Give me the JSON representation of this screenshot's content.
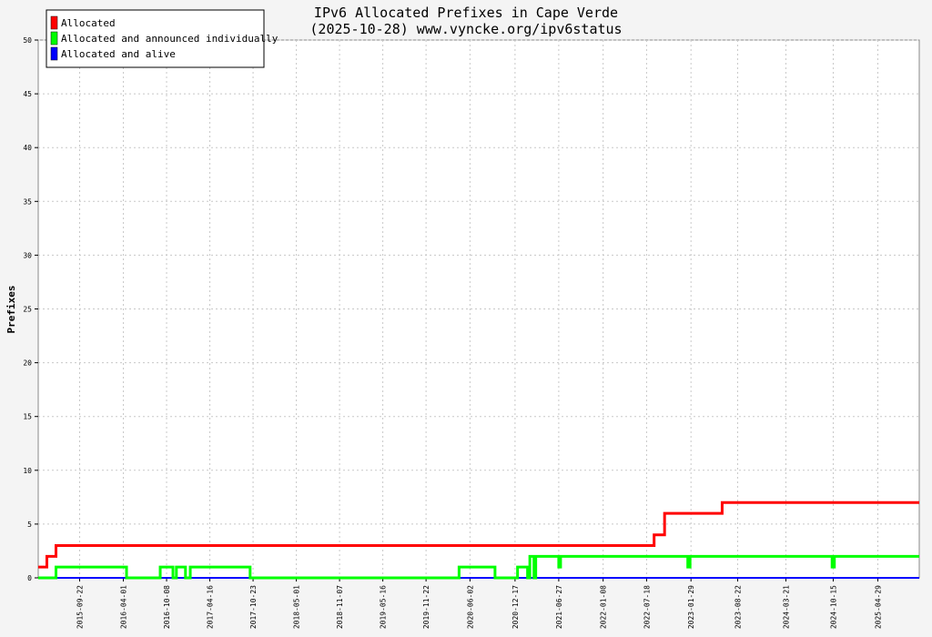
{
  "chart_data": {
    "type": "line",
    "title": "IPv6 Allocated Prefixes in Cape Verde",
    "subtitle": "(2025-10-28) www.vyncke.org/ipv6status",
    "xlabel": "",
    "ylabel": "Prefixes",
    "ylim": [
      0,
      50
    ],
    "yticks": [
      0,
      5,
      10,
      15,
      20,
      25,
      30,
      35,
      40,
      45,
      50
    ],
    "xlim": [
      "2015-03-24",
      "2025-10-28"
    ],
    "xticks": [
      "2015-09-22",
      "2016-04-01",
      "2016-10-08",
      "2017-04-16",
      "2017-10-23",
      "2018-05-01",
      "2018-11-07",
      "2019-05-16",
      "2019-11-22",
      "2020-06-02",
      "2020-12-17",
      "2021-06-27",
      "2022-01-08",
      "2022-07-18",
      "2023-01-29",
      "2023-08-22",
      "2024-03-21",
      "2024-10-15",
      "2025-04-29"
    ],
    "grid": true,
    "legend_position": "top-left",
    "series": [
      {
        "name": "Allocated",
        "color": "#ff0000",
        "points": [
          [
            "2015-03-24",
            1
          ],
          [
            "2015-05-01",
            1
          ],
          [
            "2015-05-01",
            2
          ],
          [
            "2015-06-10",
            2
          ],
          [
            "2015-06-10",
            3
          ],
          [
            "2022-08-20",
            3
          ],
          [
            "2022-08-20",
            4
          ],
          [
            "2022-10-05",
            4
          ],
          [
            "2022-10-05",
            6
          ],
          [
            "2023-06-15",
            6
          ],
          [
            "2023-06-15",
            7
          ],
          [
            "2025-10-28",
            7
          ]
        ]
      },
      {
        "name": "Allocated and announced individually",
        "color": "#00ff00",
        "points": [
          [
            "2015-03-24",
            0
          ],
          [
            "2015-06-10",
            0
          ],
          [
            "2015-06-10",
            1
          ],
          [
            "2016-04-15",
            1
          ],
          [
            "2016-04-15",
            0
          ],
          [
            "2016-09-10",
            0
          ],
          [
            "2016-09-10",
            1
          ],
          [
            "2016-11-05",
            1
          ],
          [
            "2016-11-05",
            0
          ],
          [
            "2016-11-20",
            0
          ],
          [
            "2016-11-20",
            1
          ],
          [
            "2016-12-30",
            1
          ],
          [
            "2016-12-30",
            0
          ],
          [
            "2017-01-20",
            0
          ],
          [
            "2017-01-20",
            1
          ],
          [
            "2017-10-10",
            1
          ],
          [
            "2017-10-10",
            0
          ],
          [
            "2020-04-15",
            0
          ],
          [
            "2020-04-15",
            1
          ],
          [
            "2020-09-20",
            1
          ],
          [
            "2020-09-20",
            0
          ],
          [
            "2020-12-28",
            0
          ],
          [
            "2020-12-28",
            1
          ],
          [
            "2021-02-10",
            1
          ],
          [
            "2021-02-10",
            0
          ],
          [
            "2021-02-20",
            0
          ],
          [
            "2021-02-20",
            2
          ],
          [
            "2021-03-10",
            2
          ],
          [
            "2021-03-10",
            0
          ],
          [
            "2021-03-18",
            0
          ],
          [
            "2021-03-18",
            2
          ],
          [
            "2021-06-27",
            2
          ],
          [
            "2021-06-27",
            1
          ],
          [
            "2021-07-05",
            1
          ],
          [
            "2021-07-05",
            2
          ],
          [
            "2023-01-15",
            2
          ],
          [
            "2023-01-15",
            1
          ],
          [
            "2023-01-25",
            1
          ],
          [
            "2023-01-25",
            2
          ],
          [
            "2024-10-10",
            2
          ],
          [
            "2024-10-10",
            1
          ],
          [
            "2024-10-20",
            1
          ],
          [
            "2024-10-20",
            2
          ],
          [
            "2025-10-28",
            2
          ]
        ]
      },
      {
        "name": "Allocated and alive",
        "color": "#0000ff",
        "points": [
          [
            "2015-03-24",
            0
          ],
          [
            "2025-10-28",
            0
          ]
        ]
      }
    ]
  }
}
